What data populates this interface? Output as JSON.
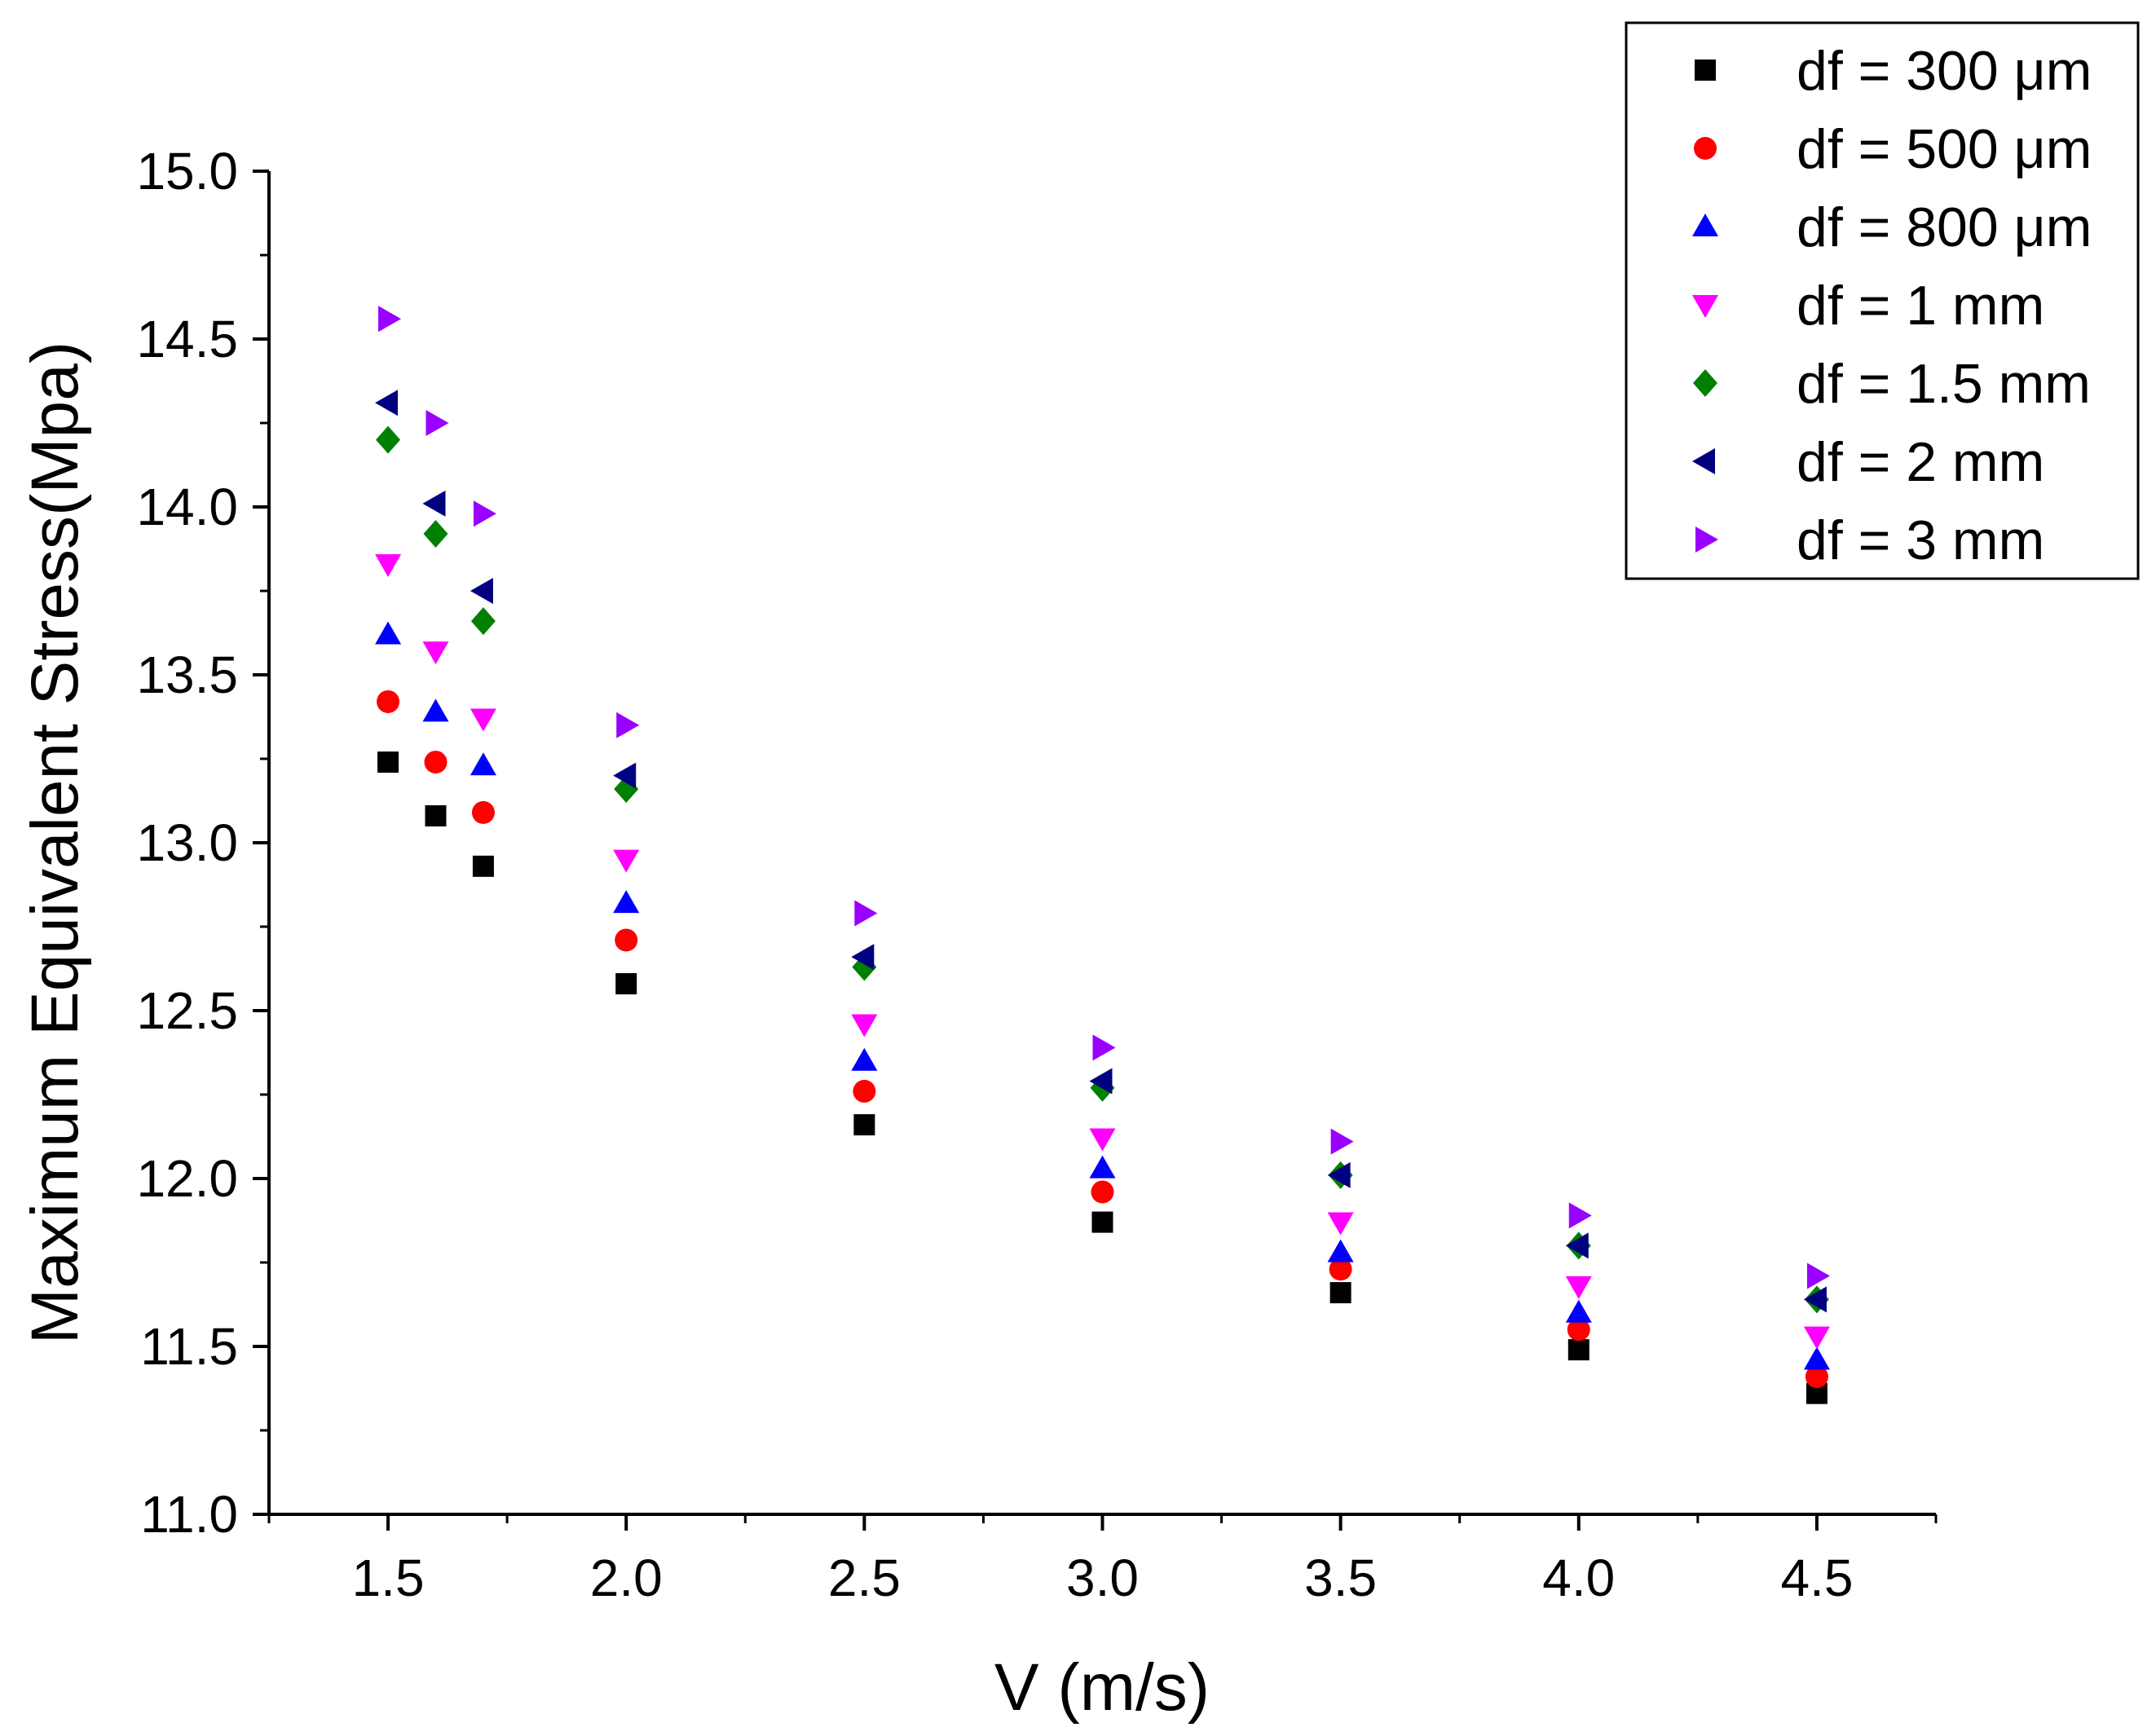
{
  "chart_data": {
    "type": "scatter",
    "title": "",
    "xlabel": "V (m/s)",
    "ylabel": "Maximum Equivalent Stress(Mpa)",
    "xlim": [
      1.25,
      4.75
    ],
    "ylim": [
      11.0,
      15.0
    ],
    "x_ticks": [
      "1.5",
      "2.0",
      "2.5",
      "3.0",
      "3.5",
      "4.0",
      "4.5"
    ],
    "y_ticks": [
      "11.0",
      "11.5",
      "12.0",
      "12.5",
      "13.0",
      "13.5",
      "14.0",
      "14.5",
      "15.0"
    ],
    "legend_position": "top-right",
    "x": [
      1.5,
      1.6,
      1.7,
      2.0,
      2.5,
      3.0,
      3.5,
      4.0,
      4.5
    ],
    "series": [
      {
        "name": "df = 300 μm",
        "marker": "square",
        "color": "#000000",
        "values": [
          13.24,
          13.08,
          12.93,
          12.58,
          12.16,
          11.87,
          11.66,
          11.49,
          11.36
        ]
      },
      {
        "name": "df = 500 μm",
        "marker": "circle",
        "color": "#ff0000",
        "values": [
          13.42,
          13.24,
          13.09,
          12.71,
          12.26,
          11.96,
          11.73,
          11.55,
          11.41
        ]
      },
      {
        "name": "df = 800 μm",
        "marker": "triangle-up",
        "color": "#0000ff",
        "values": [
          13.62,
          13.39,
          13.23,
          12.82,
          12.35,
          12.03,
          11.78,
          11.6,
          11.46
        ]
      },
      {
        "name": "df = 1 mm",
        "marker": "triangle-down",
        "color": "#ff00ff",
        "values": [
          13.83,
          13.57,
          13.37,
          12.95,
          12.46,
          12.12,
          11.87,
          11.68,
          11.53
        ]
      },
      {
        "name": "df = 1.5 mm",
        "marker": "diamond",
        "color": "#008000",
        "values": [
          14.2,
          13.92,
          13.66,
          13.16,
          12.63,
          12.27,
          12.01,
          11.8,
          11.64
        ]
      },
      {
        "name": "df = 2 mm",
        "marker": "triangle-left",
        "color": "#000080",
        "values": [
          14.31,
          14.01,
          13.75,
          13.2,
          12.66,
          12.29,
          12.01,
          11.8,
          11.64
        ]
      },
      {
        "name": "df = 3 mm",
        "marker": "triangle-right",
        "color": "#9900ff",
        "values": [
          14.56,
          14.25,
          13.98,
          13.35,
          12.79,
          12.39,
          12.11,
          11.89,
          11.71
        ]
      }
    ]
  }
}
